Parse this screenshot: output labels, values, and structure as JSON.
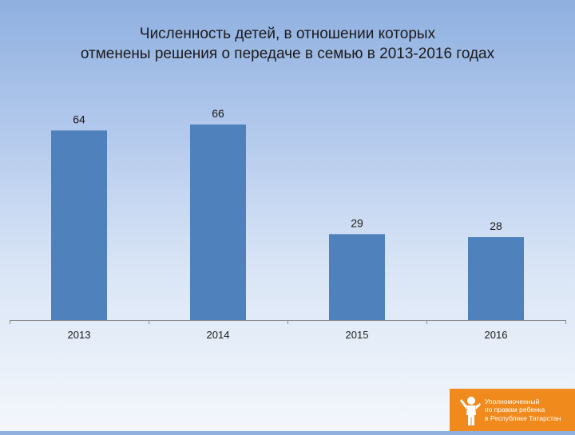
{
  "title_lines": [
    "Численность детей, в отношении которых",
    "отменены решения о передаче в семью в 2013-2016 годах"
  ],
  "chart_data": {
    "type": "bar",
    "title": "Численность детей, в отношении которых отменены решения о передаче в семью в 2013-2016 годах",
    "categories": [
      "2013",
      "2014",
      "2015",
      "2016"
    ],
    "values": [
      64,
      66,
      29,
      28
    ],
    "data_labels": [
      "64",
      "66",
      "29",
      "28"
    ],
    "xlabel": "",
    "ylabel": "",
    "ylim": [
      0,
      70
    ],
    "grid": false,
    "legend": "none",
    "bar_color": "#4f81bd"
  },
  "badge": {
    "lines": [
      "Уполномоченный",
      "по правам ребенка",
      "в Республике Татарстан"
    ],
    "icon": "child-figure-icon",
    "color": "#f08a1c"
  }
}
